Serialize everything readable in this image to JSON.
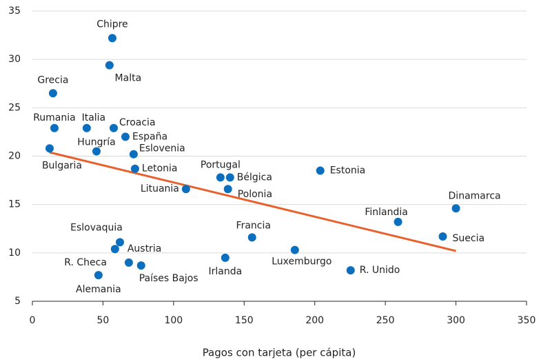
{
  "chart_data": {
    "type": "scatter",
    "xlabel": "Pagos con tarjeta (per cápita)",
    "xlim": [
      0,
      350
    ],
    "xticks": [
      0,
      50,
      100,
      150,
      200,
      250,
      300,
      350
    ],
    "ylim": [
      5,
      35
    ],
    "yticks": [
      5,
      10,
      15,
      20,
      25,
      30,
      35
    ],
    "grid": true,
    "color": "#0b6fbe",
    "series": [
      {
        "name": null,
        "color": "#0b6fbe",
        "labels": [
          "Chipre",
          "Malta",
          "Grecia",
          "Rumania",
          "Italia",
          "Croacia",
          "España",
          "Hungría",
          "Eslovenia",
          "Bulgaria",
          "Letonia",
          "Portugal",
          "Bélgica",
          "Polonia",
          "Lituania",
          "Estonia",
          "Dinamarca",
          "Finlandia",
          "Suecia",
          "Francia",
          "Luxemburgo",
          "Irlanda",
          "R. Unido",
          "Eslovaquia",
          "Austria",
          "R. Checa",
          "Países Bajos",
          "Alemania"
        ],
        "x": [
          56.6,
          54.6,
          14.6,
          15.6,
          38.5,
          57.6,
          65.9,
          45.4,
          71.7,
          12.2,
          72.7,
          133.2,
          140,
          138.5,
          108.8,
          203.9,
          300,
          259,
          290.7,
          155.6,
          185.9,
          136.6,
          225.4,
          62,
          58.5,
          68.3,
          77,
          46.8
        ],
        "values": [
          32.2,
          29.4,
          26.5,
          22.9,
          22.9,
          22.9,
          22.0,
          20.5,
          20.2,
          20.8,
          18.7,
          17.8,
          17.8,
          16.6,
          16.6,
          18.5,
          14.6,
          13.2,
          11.7,
          11.6,
          10.3,
          9.5,
          8.2,
          11.1,
          10.4,
          9.0,
          8.7,
          7.7
        ]
      }
    ],
    "trend": {
      "color": "#e8602c",
      "x": [
        12,
        300
      ],
      "values": [
        20.4,
        10.2
      ]
    }
  }
}
